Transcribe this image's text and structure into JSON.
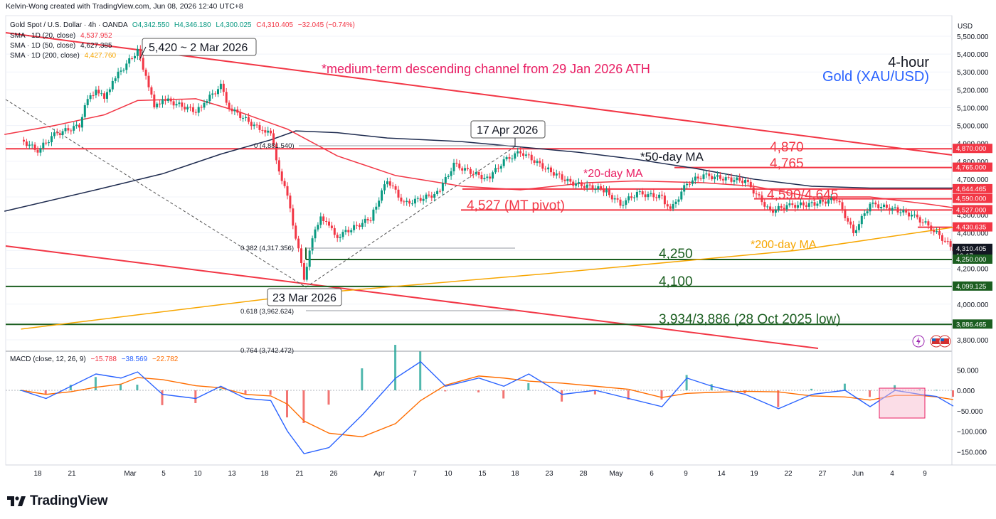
{
  "header": {
    "attribution": "Kelvin-Wong created with TradingView.com, Jun 08, 2026 12:40 UTC+8"
  },
  "symbol_line": {
    "name": "Gold Spot / U.S. Dollar · 4h · OANDA",
    "o": "O4,342.550",
    "h": "H4,346.180",
    "l": "L4,300.025",
    "c": "C4,310.405",
    "chg": "−32.045 (−0.74%)"
  },
  "indicators": [
    {
      "label": "SMA · 1D (20, close)",
      "value": "4,537.952",
      "color": "#f23645"
    },
    {
      "label": "SMA · 1D (50, close)",
      "value": "4,627.385",
      "color": "#131722"
    },
    {
      "label": "SMA · 1D (200, close)",
      "value": "4,427.760",
      "color": "#f7a600"
    }
  ],
  "macd_legend": {
    "label": "MACD (close, 12, 26, 9)",
    "v1": "−15.788",
    "v2": "−38.569",
    "v3": "−22.782"
  },
  "colors": {
    "up": "#089981",
    "down": "#f23645",
    "sma20": "#f23645",
    "sma50": "#1e2b4f",
    "sma200": "#f7a600",
    "channel": "#f23645",
    "support": "#1b5e20",
    "macd": "#2962ff",
    "signal": "#ff6d00"
  },
  "price_axis": {
    "currency": "USD",
    "ticks": [
      "5,500.000",
      "5,400.000",
      "5,300.000",
      "5,200.000",
      "5,100.000",
      "5,000.000",
      "4,900.000",
      "4,800.000",
      "4,700.000",
      "4,600.000",
      "4,500.000",
      "4,400.000",
      "4,300.000",
      "4,200.000",
      "4,100.000",
      "4,000.000",
      "3,900.000",
      "3,800.000"
    ],
    "badges": [
      {
        "text": "4,870.000",
        "style": "red"
      },
      {
        "text": "4,765.000",
        "style": "red"
      },
      {
        "text": "4,644.465",
        "style": "red"
      },
      {
        "text": "4,590.000",
        "style": "red"
      },
      {
        "text": "4,527.000",
        "style": "red"
      },
      {
        "text": "4,430.635",
        "style": "red"
      },
      {
        "text": "4,310.405",
        "style": "dark",
        "sub": "19:17"
      },
      {
        "text": "4,250.000",
        "style": "green"
      },
      {
        "text": "4,099.125",
        "style": "green"
      },
      {
        "text": "3,886.465",
        "style": "green"
      }
    ]
  },
  "macd_axis": {
    "ticks": [
      "50.000",
      "0.000",
      "−50.000",
      "−100.000",
      "−150.000"
    ]
  },
  "time_axis": {
    "labels": [
      "18",
      "21",
      "Mar",
      "5",
      "10",
      "13",
      "18",
      "21",
      "26",
      "Apr",
      "7",
      "10",
      "15",
      "18",
      "23",
      "28",
      "May",
      "6",
      "9",
      "14",
      "19",
      "22",
      "27",
      "Jun",
      "4",
      "9"
    ]
  },
  "annotations": {
    "high_callout": "5,420 ~ 2 Mar 2026",
    "apr_callout": "17 Apr 2026",
    "mar_low_callout": "23 Mar 2026",
    "channel_note": "*medium-term descending channel from 29 Jan 2026 ATH",
    "timeframe": "4-hour",
    "instrument": "Gold (XAU/USD)",
    "ma50": "*50-day MA",
    "ma20": "*20-day MA",
    "ma200": "*200-day MA",
    "lvl_4870": "4,870",
    "lvl_4765": "4,765",
    "lvl_4590": "4,590/4,645",
    "lvl_4527": "4,527 (MT pivot)",
    "lvl_4250": "4,250",
    "lvl_4100": "4,100",
    "lvl_3934": "3,934/3,886 (28 Oct 2025 low)",
    "fib_0": "0 (4,881.540)",
    "fib_382": "0.382 (4,317.356)",
    "fib_618": "0.618 (3,962.624)",
    "fib_764": "0.764 (3,742.472)"
  },
  "footer": {
    "brand": "TradingView"
  },
  "chart_data": {
    "type": "candlestick",
    "title": "Gold Spot / U.S. Dollar · 4h · OANDA",
    "timeframe": "4h",
    "ylim": [
      3750,
      5560
    ],
    "x_range": [
      "2026-02-16",
      "2026-06-09"
    ],
    "series": [
      {
        "name": "Gold (XAU/USD) 4h closes (approx.)",
        "points": [
          [
            "2026-02-16",
            4920
          ],
          [
            "2026-02-18",
            4860
          ],
          [
            "2026-02-20",
            4950
          ],
          [
            "2026-02-23",
            5000
          ],
          [
            "2026-02-24",
            5150
          ],
          [
            "2026-02-25",
            5200
          ],
          [
            "2026-02-26",
            5150
          ],
          [
            "2026-02-27",
            5250
          ],
          [
            "2026-03-02",
            5420
          ],
          [
            "2026-03-03",
            5280
          ],
          [
            "2026-03-04",
            5100
          ],
          [
            "2026-03-05",
            5150
          ],
          [
            "2026-03-09",
            5080
          ],
          [
            "2026-03-10",
            5130
          ],
          [
            "2026-03-12",
            5220
          ],
          [
            "2026-03-13",
            5100
          ],
          [
            "2026-03-16",
            5000
          ],
          [
            "2026-03-17",
            4980
          ],
          [
            "2026-03-18",
            4950
          ],
          [
            "2026-03-19",
            4750
          ],
          [
            "2026-03-20",
            4600
          ],
          [
            "2026-03-22",
            4150
          ],
          [
            "2026-03-23",
            4360
          ],
          [
            "2026-03-24",
            4500
          ],
          [
            "2026-03-25",
            4430
          ],
          [
            "2026-03-26",
            4380
          ],
          [
            "2026-03-30",
            4480
          ],
          [
            "2026-04-01",
            4700
          ],
          [
            "2026-04-03",
            4560
          ],
          [
            "2026-04-07",
            4620
          ],
          [
            "2026-04-09",
            4780
          ],
          [
            "2026-04-13",
            4700
          ],
          [
            "2026-04-15",
            4800
          ],
          [
            "2026-04-17",
            4855
          ],
          [
            "2026-04-20",
            4760
          ],
          [
            "2026-04-23",
            4680
          ],
          [
            "2026-04-27",
            4640
          ],
          [
            "2026-04-29",
            4560
          ],
          [
            "2026-05-01",
            4620
          ],
          [
            "2026-05-04",
            4600
          ],
          [
            "2026-05-05",
            4520
          ],
          [
            "2026-05-07",
            4680
          ],
          [
            "2026-05-09",
            4720
          ],
          [
            "2026-05-12",
            4700
          ],
          [
            "2026-05-14",
            4690
          ],
          [
            "2026-05-17",
            4520
          ],
          [
            "2026-05-19",
            4550
          ],
          [
            "2026-05-22",
            4560
          ],
          [
            "2026-05-25",
            4590
          ],
          [
            "2026-05-27",
            4400
          ],
          [
            "2026-05-29",
            4560
          ],
          [
            "2026-06-01",
            4530
          ],
          [
            "2026-06-03",
            4500
          ],
          [
            "2026-06-05",
            4440
          ],
          [
            "2026-06-08",
            4310
          ]
        ]
      }
    ],
    "horizontal_levels": [
      4870,
      4765,
      4644.465,
      4590,
      4527,
      4250,
      4099.125,
      3886.465
    ],
    "fibonacci": {
      "0": 4881.54,
      "0.382": 4317.356,
      "0.618": 3962.624,
      "0.764": 3742.472
    },
    "sma": {
      "sma20": 4537.952,
      "sma50": 4627.385,
      "sma200": 4427.76
    },
    "macd": {
      "fast": 12,
      "slow": 26,
      "signal": 9,
      "macd": -38.569,
      "signal_value": -22.782,
      "histogram": -15.788,
      "ylim": [
        -165,
        70
      ]
    }
  }
}
